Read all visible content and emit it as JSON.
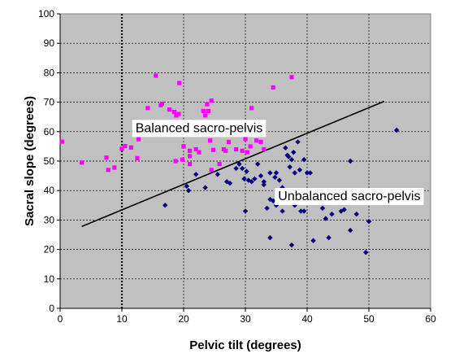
{
  "chart_data": {
    "type": "scatter",
    "title": "",
    "xlabel": "Pelvic tilt (degrees)",
    "ylabel": "Sacral slope (degrees)",
    "xlim": [
      0,
      60
    ],
    "ylim": [
      0,
      100
    ],
    "x_ticks": [
      0,
      10,
      20,
      30,
      40,
      50,
      60
    ],
    "y_ticks": [
      0,
      10,
      20,
      30,
      40,
      50,
      60,
      70,
      80,
      90,
      100
    ],
    "grid": true,
    "plot_background": "#c0c0c0",
    "reference_vline_x": 10,
    "annotations": [
      {
        "text": "Balanced sacro-pelvis",
        "x": 12.2,
        "y": 61.5
      },
      {
        "text": "Unbalanced sacro-pelvis",
        "x": 35.3,
        "y": 38.4
      }
    ],
    "fit_line": {
      "x": [
        3.5,
        52.5
      ],
      "y": [
        27.8,
        70.3
      ],
      "color": "#000000"
    },
    "series": [
      {
        "marker": "square",
        "color": "#ff00ff",
        "points": [
          [
            0.3,
            56.6
          ],
          [
            3.5,
            49.5
          ],
          [
            7.5,
            51.2
          ],
          [
            7.8,
            47.0
          ],
          [
            8.8,
            47.8
          ],
          [
            10.0,
            54.2
          ],
          [
            10.5,
            55.1
          ],
          [
            11.5,
            54.6
          ],
          [
            12.5,
            51.0
          ],
          [
            12.7,
            57.4
          ],
          [
            14.2,
            68.0
          ],
          [
            15.5,
            79.0
          ],
          [
            16.3,
            69.0
          ],
          [
            16.5,
            69.5
          ],
          [
            17.7,
            67.5
          ],
          [
            18.0,
            62.0
          ],
          [
            18.5,
            66.7
          ],
          [
            18.8,
            65.5
          ],
          [
            18.7,
            50.0
          ],
          [
            19.3,
            76.5
          ],
          [
            19.2,
            66.0
          ],
          [
            19.8,
            50.5
          ],
          [
            20.0,
            55.0
          ],
          [
            20.3,
            60.5
          ],
          [
            21.0,
            53.5
          ],
          [
            21.0,
            51.7
          ],
          [
            21.5,
            60.7
          ],
          [
            21.0,
            49.0
          ],
          [
            22.0,
            54.0
          ],
          [
            22.5,
            53.0
          ],
          [
            22.8,
            63.0
          ],
          [
            23.2,
            67.0
          ],
          [
            23.5,
            65.5
          ],
          [
            23.8,
            69.3
          ],
          [
            24.0,
            67.0
          ],
          [
            24.5,
            70.5
          ],
          [
            24.3,
            57.0
          ],
          [
            24.8,
            53.8
          ],
          [
            25.0,
            61.0
          ],
          [
            25.5,
            59.5
          ],
          [
            25.8,
            49.0
          ],
          [
            26.0,
            62.5
          ],
          [
            26.5,
            54.0
          ],
          [
            26.8,
            53.5
          ],
          [
            27.3,
            56.5
          ],
          [
            27.8,
            62.5
          ],
          [
            28.5,
            54.0
          ],
          [
            29.5,
            53.5
          ],
          [
            30.0,
            57.5
          ],
          [
            30.3,
            53.0
          ],
          [
            30.8,
            55.0
          ],
          [
            31.0,
            68.0
          ],
          [
            31.8,
            57.0
          ],
          [
            32.5,
            56.5
          ],
          [
            33.0,
            54.0
          ],
          [
            34.5,
            75.0
          ],
          [
            37.5,
            78.5
          ],
          [
            24.5,
            47.0
          ],
          [
            29.0,
            61.0
          ]
        ]
      },
      {
        "marker": "diamond",
        "color": "#000080",
        "points": [
          [
            17.0,
            35.0
          ],
          [
            20.5,
            41.5
          ],
          [
            20.8,
            40.0
          ],
          [
            22.0,
            45.5
          ],
          [
            23.5,
            41.0
          ],
          [
            25.5,
            45.5
          ],
          [
            27.0,
            43.0
          ],
          [
            27.5,
            42.5
          ],
          [
            28.5,
            47.5
          ],
          [
            29.0,
            49.0
          ],
          [
            29.5,
            47.5
          ],
          [
            29.8,
            44.0
          ],
          [
            30.0,
            33.0
          ],
          [
            30.2,
            46.5
          ],
          [
            30.5,
            43.5
          ],
          [
            31.0,
            43.0
          ],
          [
            31.5,
            44.0
          ],
          [
            32.0,
            49.0
          ],
          [
            32.5,
            45.0
          ],
          [
            33.0,
            42.0
          ],
          [
            33.5,
            34.0
          ],
          [
            34.0,
            37.0
          ],
          [
            34.5,
            36.5
          ],
          [
            34.8,
            44.5
          ],
          [
            35.0,
            46.0
          ],
          [
            35.5,
            43.5
          ],
          [
            35.8,
            37.0
          ],
          [
            36.0,
            33.0
          ],
          [
            36.5,
            54.5
          ],
          [
            36.8,
            52.0
          ],
          [
            37.0,
            51.5
          ],
          [
            37.2,
            48.0
          ],
          [
            37.5,
            50.5
          ],
          [
            37.8,
            53.0
          ],
          [
            38.0,
            46.0
          ],
          [
            38.5,
            56.5
          ],
          [
            38.8,
            47.0
          ],
          [
            39.0,
            33.0
          ],
          [
            39.2,
            38.0
          ],
          [
            39.5,
            50.5
          ],
          [
            40.0,
            46.0
          ],
          [
            40.5,
            46.0
          ],
          [
            41.0,
            23.0
          ],
          [
            42.0,
            37.5
          ],
          [
            42.5,
            34.0
          ],
          [
            43.0,
            30.5
          ],
          [
            43.5,
            24.0
          ],
          [
            44.0,
            32.0
          ],
          [
            45.5,
            33.0
          ],
          [
            46.0,
            33.5
          ],
          [
            47.0,
            26.5
          ],
          [
            47.0,
            50.0
          ],
          [
            48.0,
            32.0
          ],
          [
            49.5,
            19.0
          ],
          [
            50.0,
            29.5
          ],
          [
            54.5,
            60.5
          ],
          [
            34.0,
            24.0
          ],
          [
            37.5,
            21.5
          ],
          [
            36.0,
            41.0
          ],
          [
            35.0,
            35.0
          ],
          [
            33.0,
            43.0
          ],
          [
            39.5,
            33.0
          ],
          [
            41.5,
            36.0
          ],
          [
            34.0,
            46.0
          ],
          [
            38.0,
            35.0
          ]
        ]
      }
    ]
  }
}
